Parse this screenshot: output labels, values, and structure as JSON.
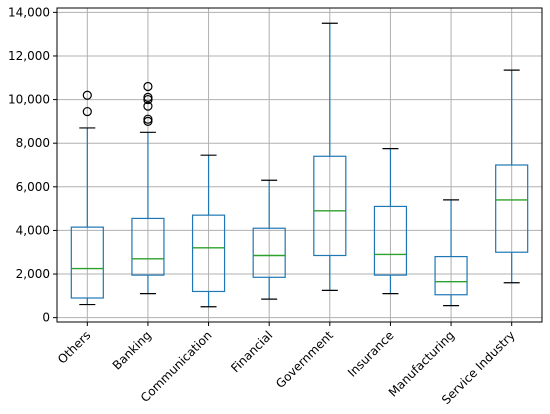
{
  "chart_data": {
    "type": "boxplot",
    "title": "",
    "xlabel": "",
    "ylabel": "",
    "ylim": [
      -200,
      14200
    ],
    "yticks": [
      0,
      2000,
      4000,
      6000,
      8000,
      10000,
      12000,
      14000
    ],
    "ytick_labels": [
      "0",
      "2,000",
      "4,000",
      "6,000",
      "8,000",
      "10,000",
      "12,000",
      "14,000"
    ],
    "grid": true,
    "colors": {
      "box": "#1f77b4",
      "median": "#2ca02c",
      "cap": "#000000",
      "outlier": "#000000",
      "grid": "#b0b0b0"
    },
    "categories": [
      "Others",
      "Banking",
      "Communication",
      "Financial",
      "Government",
      "Insurance",
      "Manufacturing",
      "Service Industry"
    ],
    "boxes": [
      {
        "category": "Others",
        "whislo": 600,
        "q1": 900,
        "med": 2250,
        "q3": 4150,
        "whishi": 8700,
        "fliers": [
          9450,
          10200
        ]
      },
      {
        "category": "Banking",
        "whislo": 1100,
        "q1": 1950,
        "med": 2700,
        "q3": 4550,
        "whishi": 8500,
        "fliers": [
          9000,
          9100,
          9700,
          10000,
          10100,
          10600
        ]
      },
      {
        "category": "Communication",
        "whislo": 500,
        "q1": 1200,
        "med": 3200,
        "q3": 4700,
        "whishi": 7450,
        "fliers": []
      },
      {
        "category": "Financial",
        "whislo": 850,
        "q1": 1850,
        "med": 2850,
        "q3": 4100,
        "whishi": 6300,
        "fliers": []
      },
      {
        "category": "Government",
        "whislo": 1250,
        "q1": 2850,
        "med": 4900,
        "q3": 7400,
        "whishi": 13500,
        "fliers": []
      },
      {
        "category": "Insurance",
        "whislo": 1100,
        "q1": 1950,
        "med": 2900,
        "q3": 5100,
        "whishi": 7750,
        "fliers": []
      },
      {
        "category": "Manufacturing",
        "whislo": 550,
        "q1": 1050,
        "med": 1650,
        "q3": 2800,
        "whishi": 5400,
        "fliers": []
      },
      {
        "category": "Service Industry",
        "whislo": 1600,
        "q1": 3000,
        "med": 5400,
        "q3": 7000,
        "whishi": 11350,
        "fliers": []
      }
    ]
  }
}
